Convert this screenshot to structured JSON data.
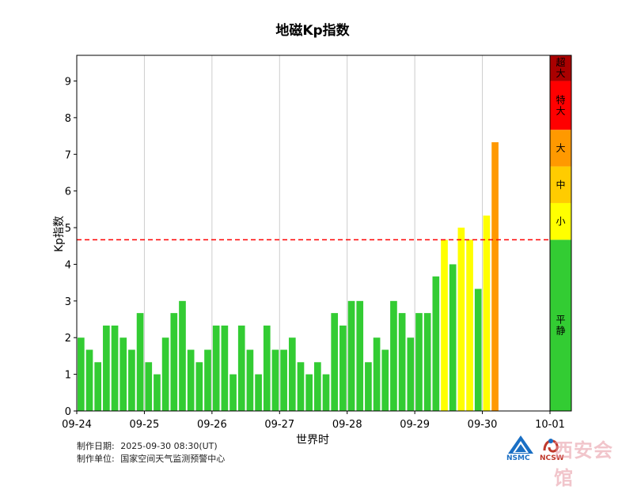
{
  "chart_data": {
    "type": "bar",
    "title": "地磁Kp指数",
    "xlabel": "世界时",
    "ylabel": "Kp指数",
    "ylim": [
      0,
      9.7
    ],
    "yticks": [
      0,
      1,
      2,
      3,
      4,
      5,
      6,
      7,
      8,
      9
    ],
    "xticks": [
      "09-24",
      "09-25",
      "09-26",
      "09-27",
      "09-28",
      "09-29",
      "09-30",
      "10-01"
    ],
    "values": [
      2.0,
      1.67,
      1.33,
      2.33,
      2.33,
      2.0,
      1.67,
      2.67,
      1.33,
      1.0,
      2.0,
      2.67,
      3.0,
      1.67,
      1.33,
      1.67,
      2.33,
      2.33,
      1.0,
      2.33,
      1.67,
      1.0,
      2.33,
      1.67,
      1.67,
      2.0,
      1.33,
      1.0,
      1.33,
      1.0,
      2.67,
      2.33,
      3.0,
      3.0,
      1.33,
      2.0,
      1.67,
      3.0,
      2.67,
      2.0,
      2.67,
      2.67,
      3.67,
      4.67,
      4.0,
      5.0,
      4.67,
      3.33,
      5.33,
      7.33
    ],
    "threshold": 4.67,
    "grid": true,
    "colors": {
      "quiet": "#33cc33",
      "minor": "#ffff00",
      "moderate": "#ffcc00",
      "strong": "#ff9900",
      "severe": "#ff0000",
      "extreme": "#aa0000",
      "threshold": "#ff0000"
    },
    "levels": [
      {
        "label": "平静",
        "from": 0,
        "to": 4.67,
        "color": "#33cc33"
      },
      {
        "label": "小",
        "from": 4.67,
        "to": 5.67,
        "color": "#ffff00"
      },
      {
        "label": "中",
        "from": 5.67,
        "to": 6.67,
        "color": "#ffcc00"
      },
      {
        "label": "大",
        "from": 6.67,
        "to": 7.67,
        "color": "#ff9900"
      },
      {
        "label": "特大",
        "from": 7.67,
        "to": 9.0,
        "color": "#ff0000"
      },
      {
        "label": "超大",
        "from": 9.0,
        "to": 9.7,
        "color": "#aa0000"
      }
    ]
  },
  "footer": {
    "date_label": "制作日期:",
    "date_value": "2025-09-30 08:30(UT)",
    "unit_label": "制作单位:",
    "unit_value": "国家空间天气监测预警中心"
  },
  "logos": {
    "nsmc": "NSMC",
    "ncsw": "NCSW",
    "watermark": "西安会馆"
  }
}
